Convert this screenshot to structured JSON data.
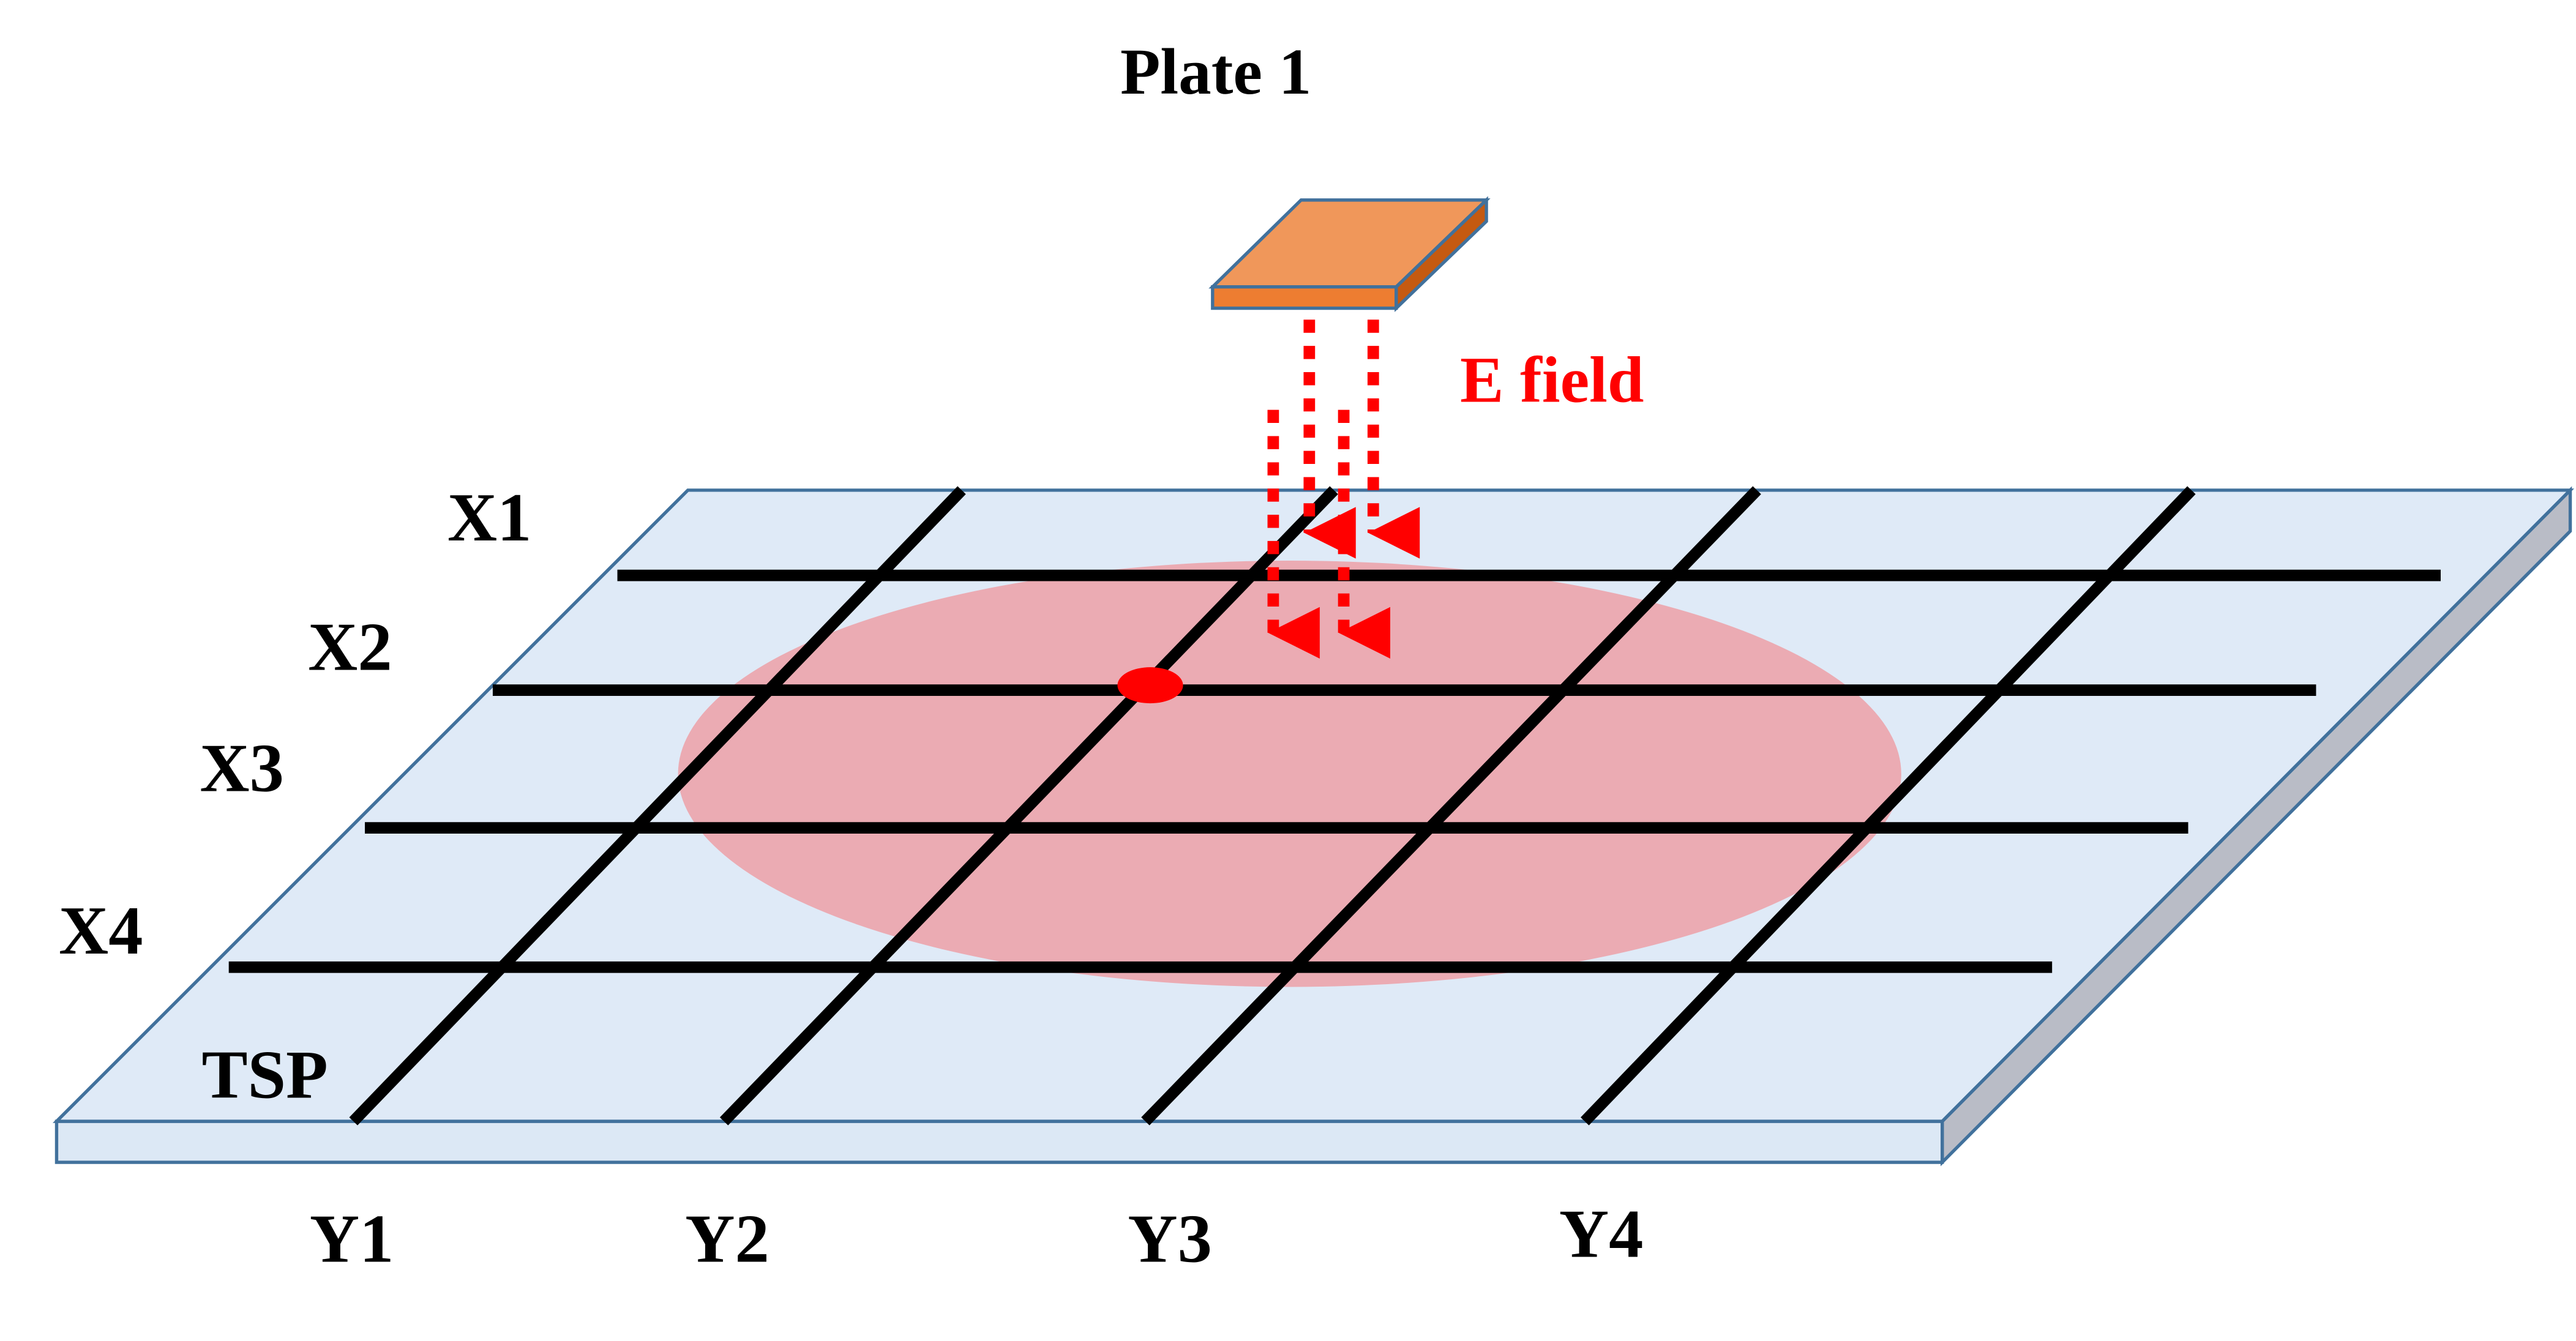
{
  "title": "Plate 1",
  "field_label": "E field",
  "panel_label": "TSP",
  "x_labels": [
    "X1",
    "X2",
    "X3",
    "X4"
  ],
  "y_labels": [
    "Y1",
    "Y2",
    "Y3",
    "Y4"
  ]
}
